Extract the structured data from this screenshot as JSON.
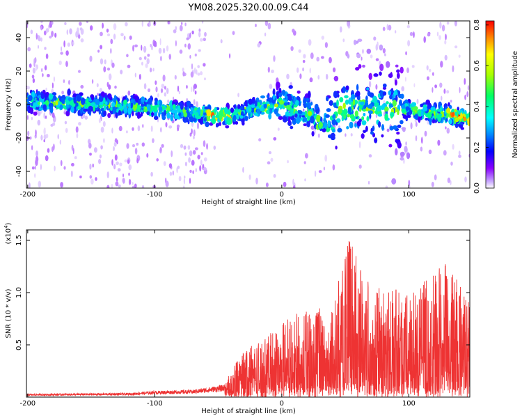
{
  "title": "YM08.2025.320.00.09.C44",
  "chart_data": [
    {
      "type": "heatmap",
      "name": "spectrogram",
      "xlabel": "Height of straight line (km)",
      "ylabel": "Frequency (Hz)",
      "xlim": [
        -201,
        148
      ],
      "ylim": [
        -50,
        50
      ],
      "xticks": [
        -200,
        -100,
        0,
        100
      ],
      "yticks": [
        40,
        20,
        0,
        -20,
        -40
      ],
      "colorbar": {
        "label": "Normalized spectral amplitude",
        "range": [
          0,
          0.82
        ],
        "ticks": [
          0.0,
          0.2,
          0.4,
          0.6,
          0.8
        ],
        "colormap": [
          "#ffffff",
          "#8800ff",
          "#0000ff",
          "#00ffff",
          "#00ff00",
          "#ffff00",
          "#ff0000"
        ]
      },
      "ridge_frequency_hz": [
        {
          "x": -200,
          "y": 2
        },
        {
          "x": -150,
          "y": 0
        },
        {
          "x": -100,
          "y": -2
        },
        {
          "x": -60,
          "y": -6
        },
        {
          "x": -40,
          "y": -7
        },
        {
          "x": -20,
          "y": -2
        },
        {
          "x": 0,
          "y": 0
        },
        {
          "x": 20,
          "y": -4
        },
        {
          "x": 30,
          "y": -12
        },
        {
          "x": 50,
          "y": -2
        },
        {
          "x": 100,
          "y": -3
        },
        {
          "x": 148,
          "y": -8
        }
      ]
    },
    {
      "type": "line",
      "name": "snr",
      "xlabel": "Height of straight line (km)",
      "ylabel": "SNR (10 * v/v)",
      "y_multiplier": "(x10",
      "y_exponent": "4",
      "xlim": [
        -201,
        148
      ],
      "ylim": [
        0,
        1.6
      ],
      "xticks": [
        -200,
        -100,
        0,
        100
      ],
      "yticks": [
        1.5,
        1.0,
        0.5
      ],
      "line_color": "#ee3333",
      "envelope": [
        {
          "x": -201,
          "y": 0.03
        },
        {
          "x": -120,
          "y": 0.04
        },
        {
          "x": -100,
          "y": 0.06
        },
        {
          "x": -70,
          "y": 0.07
        },
        {
          "x": -45,
          "y": 0.12
        },
        {
          "x": -40,
          "y": 0.25
        },
        {
          "x": -30,
          "y": 0.45
        },
        {
          "x": -10,
          "y": 0.6
        },
        {
          "x": 10,
          "y": 0.8
        },
        {
          "x": 30,
          "y": 0.85
        },
        {
          "x": 35,
          "y": 0.6
        },
        {
          "x": 45,
          "y": 1.2
        },
        {
          "x": 53,
          "y": 1.55
        },
        {
          "x": 70,
          "y": 1.1
        },
        {
          "x": 100,
          "y": 1.0
        },
        {
          "x": 130,
          "y": 1.3
        },
        {
          "x": 148,
          "y": 0.9
        }
      ]
    }
  ]
}
